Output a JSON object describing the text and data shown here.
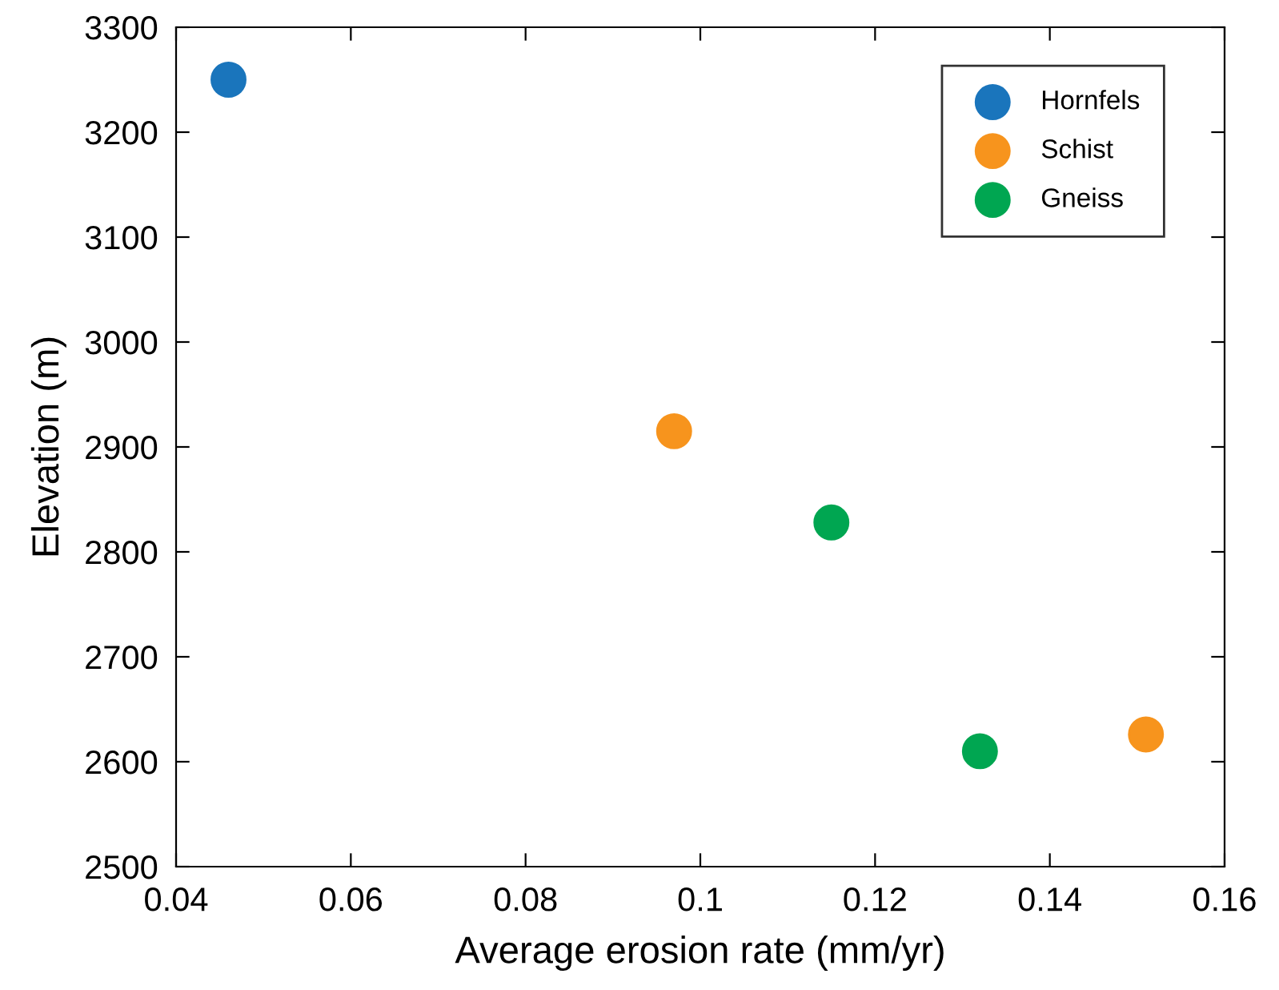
{
  "chart_data": {
    "type": "scatter",
    "xlabel": "Average erosion rate (mm/yr)",
    "ylabel": "Elevation (m)",
    "series": [
      {
        "name": "Hornfels",
        "color": "#1a75bc",
        "x": [
          0.046
        ],
        "values": [
          3250
        ]
      },
      {
        "name": "Schist",
        "color": "#f7941d",
        "x": [
          0.097,
          0.151
        ],
        "values": [
          2915,
          2626
        ]
      },
      {
        "name": "Gneiss",
        "color": "#00a651",
        "x": [
          0.115,
          0.132
        ],
        "values": [
          2828,
          2610
        ]
      }
    ],
    "xlim": [
      0.04,
      0.16
    ],
    "xticks": [
      0.04,
      0.06,
      0.08,
      0.1,
      0.12,
      0.14,
      0.16
    ],
    "ylim": [
      2500,
      3300
    ],
    "yticks": [
      2500,
      2600,
      2700,
      2800,
      2900,
      3000,
      3100,
      3200,
      3300
    ],
    "grid": false,
    "legend": "top right",
    "marker": "circle"
  }
}
